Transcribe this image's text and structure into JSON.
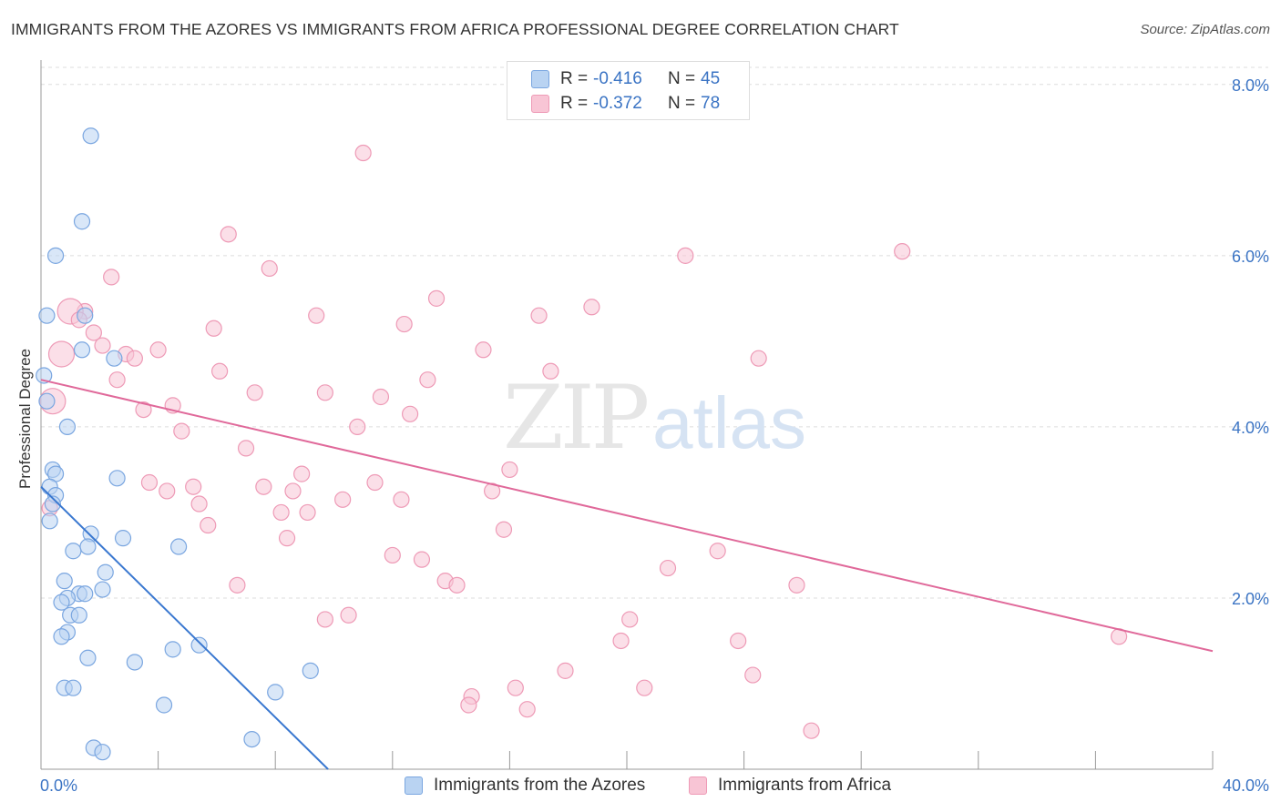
{
  "title": "IMMIGRANTS FROM THE AZORES VS IMMIGRANTS FROM AFRICA PROFESSIONAL DEGREE CORRELATION CHART",
  "source": "Source: ZipAtlas.com",
  "watermark": {
    "zip": "ZIP",
    "atlas": "atlas"
  },
  "legend": {
    "rows": [
      {
        "r_label": "R =",
        "r_value": "-0.416",
        "n_label": "N =",
        "n_value": "45"
      },
      {
        "r_label": "R =",
        "r_value": "-0.372",
        "n_label": "N =",
        "n_value": "78"
      }
    ]
  },
  "bottom_legend": {
    "azores": "Immigrants from the Azores",
    "africa": "Immigrants from Africa"
  },
  "colors": {
    "azores_fill": "#b9d3f2",
    "azores_stroke": "#7aa6e0",
    "azores_line": "#3a78d0",
    "africa_fill": "#f8c5d5",
    "africa_stroke": "#ee9ab6",
    "africa_line": "#e0699a",
    "axis_text": "#3b74c4",
    "grid": "#dddddd"
  },
  "chart_data": {
    "type": "scatter",
    "title": "IMMIGRANTS FROM THE AZORES VS IMMIGRANTS FROM AFRICA PROFESSIONAL DEGREE CORRELATION CHART",
    "xlabel": "",
    "ylabel": "Professional Degree",
    "xlim": [
      0,
      40
    ],
    "ylim": [
      0,
      8.2
    ],
    "x_tick_labels": [
      "0.0%",
      "40.0%"
    ],
    "y_ticks": [
      2.0,
      4.0,
      6.0,
      8.0
    ],
    "y_tick_labels": [
      "2.0%",
      "4.0%",
      "6.0%",
      "8.0%"
    ],
    "grid": true,
    "legend_position": "top-center",
    "series": [
      {
        "name": "Immigrants from the Azores",
        "trend": {
          "x": [
            0.0,
            9.8
          ],
          "y": [
            3.3,
            0.0
          ]
        },
        "points": [
          {
            "x": 1.7,
            "y": 7.4,
            "big": false
          },
          {
            "x": 1.4,
            "y": 6.4,
            "big": false
          },
          {
            "x": 0.5,
            "y": 6.0,
            "big": false
          },
          {
            "x": 0.2,
            "y": 5.3,
            "big": false
          },
          {
            "x": 1.5,
            "y": 5.3,
            "big": false
          },
          {
            "x": 1.4,
            "y": 4.9,
            "big": false
          },
          {
            "x": 2.5,
            "y": 4.8,
            "big": false
          },
          {
            "x": 0.1,
            "y": 4.6,
            "big": false
          },
          {
            "x": 0.2,
            "y": 4.3,
            "big": false
          },
          {
            "x": 0.9,
            "y": 4.0,
            "big": false
          },
          {
            "x": 0.4,
            "y": 3.5,
            "big": false
          },
          {
            "x": 0.5,
            "y": 3.45,
            "big": false
          },
          {
            "x": 2.6,
            "y": 3.4,
            "big": false
          },
          {
            "x": 0.3,
            "y": 3.3,
            "big": false
          },
          {
            "x": 0.5,
            "y": 3.2,
            "big": false
          },
          {
            "x": 0.4,
            "y": 3.1,
            "big": false
          },
          {
            "x": 0.3,
            "y": 2.9,
            "big": false
          },
          {
            "x": 1.7,
            "y": 2.75,
            "big": false
          },
          {
            "x": 2.8,
            "y": 2.7,
            "big": false
          },
          {
            "x": 1.6,
            "y": 2.6,
            "big": false
          },
          {
            "x": 1.1,
            "y": 2.55,
            "big": false
          },
          {
            "x": 4.7,
            "y": 2.6,
            "big": false
          },
          {
            "x": 2.2,
            "y": 2.3,
            "big": false
          },
          {
            "x": 0.8,
            "y": 2.2,
            "big": false
          },
          {
            "x": 2.1,
            "y": 2.1,
            "big": false
          },
          {
            "x": 1.3,
            "y": 2.05,
            "big": false
          },
          {
            "x": 1.5,
            "y": 2.05,
            "big": false
          },
          {
            "x": 0.9,
            "y": 2.0,
            "big": false
          },
          {
            "x": 0.7,
            "y": 1.95,
            "big": false
          },
          {
            "x": 1.0,
            "y": 1.8,
            "big": false
          },
          {
            "x": 1.3,
            "y": 1.8,
            "big": false
          },
          {
            "x": 0.9,
            "y": 1.6,
            "big": false
          },
          {
            "x": 0.7,
            "y": 1.55,
            "big": false
          },
          {
            "x": 5.4,
            "y": 1.45,
            "big": false
          },
          {
            "x": 4.5,
            "y": 1.4,
            "big": false
          },
          {
            "x": 1.6,
            "y": 1.3,
            "big": false
          },
          {
            "x": 3.2,
            "y": 1.25,
            "big": false
          },
          {
            "x": 9.2,
            "y": 1.15,
            "big": false
          },
          {
            "x": 0.8,
            "y": 0.95,
            "big": false
          },
          {
            "x": 1.1,
            "y": 0.95,
            "big": false
          },
          {
            "x": 8.0,
            "y": 0.9,
            "big": false
          },
          {
            "x": 4.2,
            "y": 0.75,
            "big": false
          },
          {
            "x": 7.2,
            "y": 0.35,
            "big": false
          },
          {
            "x": 1.8,
            "y": 0.25,
            "big": false
          },
          {
            "x": 2.1,
            "y": 0.2,
            "big": false
          }
        ]
      },
      {
        "name": "Immigrants from Africa",
        "trend": {
          "x": [
            0.0,
            40.0
          ],
          "y": [
            4.55,
            1.38
          ]
        },
        "points": [
          {
            "x": 17.2,
            "y": 7.8,
            "big": false
          },
          {
            "x": 11.0,
            "y": 7.2,
            "big": false
          },
          {
            "x": 6.4,
            "y": 6.25,
            "big": false
          },
          {
            "x": 29.4,
            "y": 6.05,
            "big": false
          },
          {
            "x": 22.0,
            "y": 6.0,
            "big": false
          },
          {
            "x": 7.8,
            "y": 5.85,
            "big": false
          },
          {
            "x": 2.4,
            "y": 5.75,
            "big": false
          },
          {
            "x": 13.5,
            "y": 5.5,
            "big": false
          },
          {
            "x": 18.8,
            "y": 5.4,
            "big": false
          },
          {
            "x": 9.4,
            "y": 5.3,
            "big": false
          },
          {
            "x": 1.5,
            "y": 5.35,
            "big": false
          },
          {
            "x": 1.0,
            "y": 5.35,
            "big": true
          },
          {
            "x": 17.0,
            "y": 5.3,
            "big": false
          },
          {
            "x": 1.3,
            "y": 5.25,
            "big": false
          },
          {
            "x": 12.4,
            "y": 5.2,
            "big": false
          },
          {
            "x": 5.9,
            "y": 5.15,
            "big": false
          },
          {
            "x": 1.8,
            "y": 5.1,
            "big": false
          },
          {
            "x": 2.1,
            "y": 4.95,
            "big": false
          },
          {
            "x": 15.1,
            "y": 4.9,
            "big": false
          },
          {
            "x": 4.0,
            "y": 4.9,
            "big": false
          },
          {
            "x": 0.7,
            "y": 4.85,
            "big": true
          },
          {
            "x": 2.9,
            "y": 4.85,
            "big": false
          },
          {
            "x": 3.2,
            "y": 4.8,
            "big": false
          },
          {
            "x": 24.5,
            "y": 4.8,
            "big": false
          },
          {
            "x": 6.1,
            "y": 4.65,
            "big": false
          },
          {
            "x": 17.4,
            "y": 4.65,
            "big": false
          },
          {
            "x": 2.6,
            "y": 4.55,
            "big": false
          },
          {
            "x": 13.2,
            "y": 4.55,
            "big": false
          },
          {
            "x": 9.7,
            "y": 4.4,
            "big": false
          },
          {
            "x": 7.3,
            "y": 4.4,
            "big": false
          },
          {
            "x": 11.6,
            "y": 4.35,
            "big": false
          },
          {
            "x": 0.4,
            "y": 4.3,
            "big": true
          },
          {
            "x": 4.5,
            "y": 4.25,
            "big": false
          },
          {
            "x": 3.5,
            "y": 4.2,
            "big": false
          },
          {
            "x": 12.6,
            "y": 4.15,
            "big": false
          },
          {
            "x": 10.8,
            "y": 4.0,
            "big": false
          },
          {
            "x": 4.8,
            "y": 3.95,
            "big": false
          },
          {
            "x": 7.0,
            "y": 3.75,
            "big": false
          },
          {
            "x": 16.0,
            "y": 3.5,
            "big": false
          },
          {
            "x": 8.9,
            "y": 3.45,
            "big": false
          },
          {
            "x": 3.7,
            "y": 3.35,
            "big": false
          },
          {
            "x": 11.4,
            "y": 3.35,
            "big": false
          },
          {
            "x": 5.2,
            "y": 3.3,
            "big": false
          },
          {
            "x": 7.6,
            "y": 3.3,
            "big": false
          },
          {
            "x": 8.6,
            "y": 3.25,
            "big": false
          },
          {
            "x": 15.4,
            "y": 3.25,
            "big": false
          },
          {
            "x": 4.3,
            "y": 3.25,
            "big": false
          },
          {
            "x": 10.3,
            "y": 3.15,
            "big": false
          },
          {
            "x": 12.3,
            "y": 3.15,
            "big": false
          },
          {
            "x": 5.4,
            "y": 3.1,
            "big": false
          },
          {
            "x": 8.2,
            "y": 3.0,
            "big": false
          },
          {
            "x": 9.1,
            "y": 3.0,
            "big": false
          },
          {
            "x": 0.3,
            "y": 3.05,
            "big": false
          },
          {
            "x": 5.7,
            "y": 2.85,
            "big": false
          },
          {
            "x": 15.8,
            "y": 2.8,
            "big": false
          },
          {
            "x": 8.4,
            "y": 2.7,
            "big": false
          },
          {
            "x": 23.1,
            "y": 2.55,
            "big": false
          },
          {
            "x": 12.0,
            "y": 2.5,
            "big": false
          },
          {
            "x": 13.0,
            "y": 2.45,
            "big": false
          },
          {
            "x": 21.4,
            "y": 2.35,
            "big": false
          },
          {
            "x": 13.8,
            "y": 2.2,
            "big": false
          },
          {
            "x": 6.7,
            "y": 2.15,
            "big": false
          },
          {
            "x": 14.2,
            "y": 2.15,
            "big": false
          },
          {
            "x": 25.8,
            "y": 2.15,
            "big": false
          },
          {
            "x": 10.5,
            "y": 1.8,
            "big": false
          },
          {
            "x": 9.7,
            "y": 1.75,
            "big": false
          },
          {
            "x": 20.1,
            "y": 1.75,
            "big": false
          },
          {
            "x": 36.8,
            "y": 1.55,
            "big": false
          },
          {
            "x": 19.8,
            "y": 1.5,
            "big": false
          },
          {
            "x": 23.8,
            "y": 1.5,
            "big": false
          },
          {
            "x": 17.9,
            "y": 1.15,
            "big": false
          },
          {
            "x": 24.3,
            "y": 1.1,
            "big": false
          },
          {
            "x": 20.6,
            "y": 0.95,
            "big": false
          },
          {
            "x": 16.2,
            "y": 0.95,
            "big": false
          },
          {
            "x": 14.7,
            "y": 0.85,
            "big": false
          },
          {
            "x": 14.6,
            "y": 0.75,
            "big": false
          },
          {
            "x": 16.6,
            "y": 0.7,
            "big": false
          },
          {
            "x": 26.3,
            "y": 0.45,
            "big": false
          }
        ]
      }
    ]
  }
}
